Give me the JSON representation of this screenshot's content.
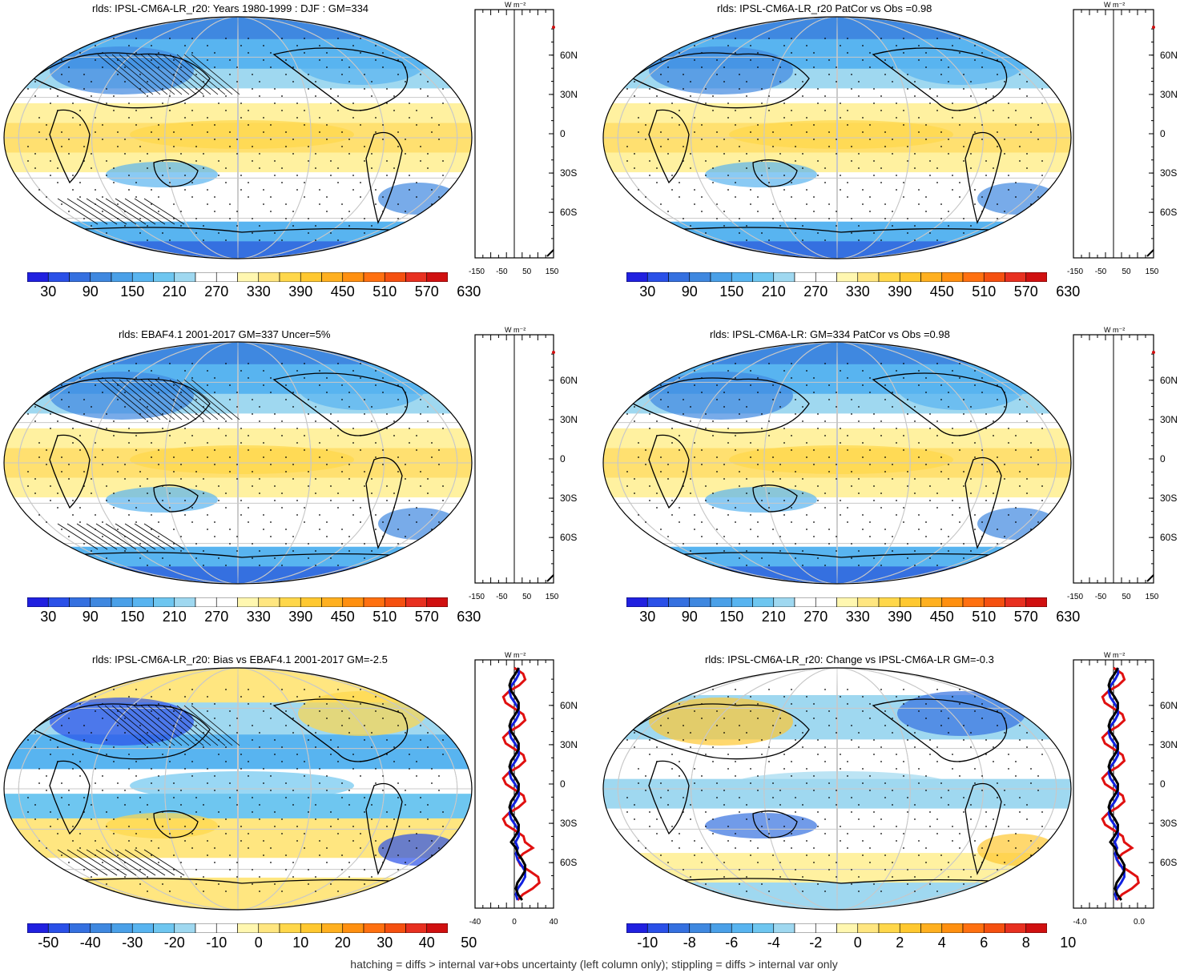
{
  "palettes": {
    "abs": [
      "#2020e0",
      "#2a50e8",
      "#3570e0",
      "#3f88e0",
      "#4aa0e8",
      "#58b4f0",
      "#6ec6f0",
      "#9fd8f0",
      "#ffffff",
      "#ffffff",
      "#fff7b0",
      "#ffe680",
      "#ffd74a",
      "#ffc830",
      "#ffb020",
      "#ff9010",
      "#ff7010",
      "#f55010",
      "#e83020",
      "#d01010"
    ],
    "diff": [
      "#2020e0",
      "#2a50e8",
      "#3570e0",
      "#3f88e0",
      "#4aa0e8",
      "#58b4f0",
      "#6ec6f0",
      "#9fd8f0",
      "#ffffff",
      "#ffffff",
      "#fff7b0",
      "#ffe680",
      "#ffd74a",
      "#ffc830",
      "#ffb020",
      "#ff9010",
      "#ff7010",
      "#f55010",
      "#e83020",
      "#d01010"
    ]
  },
  "lat_labels": [
    "60N",
    "30N",
    "0",
    "30S",
    "60S"
  ],
  "zonal_unit": "W m⁻²",
  "panels": [
    {
      "title": "rlds: IPSL-CM6A-LR_r20: Years 1980-1999 : DJF : GM=334",
      "colorbar_labels": [
        "30",
        "90",
        "150",
        "210",
        "270",
        "330",
        "390",
        "450",
        "510",
        "570",
        "630"
      ],
      "palette": "abs",
      "zonal_ticks": [
        "-150",
        "-50",
        "50",
        "150"
      ],
      "hatched": true
    },
    {
      "title": "rlds: IPSL-CM6A-LR_r20 PatCor vs Obs =0.98",
      "colorbar_labels": [
        "30",
        "90",
        "150",
        "210",
        "270",
        "330",
        "390",
        "450",
        "510",
        "570",
        "630"
      ],
      "palette": "abs",
      "zonal_ticks": [
        "-150",
        "-50",
        "50",
        "150"
      ],
      "hatched": false
    },
    {
      "title": "rlds: EBAF4.1 2001-2017 GM=337 Uncer=5%",
      "colorbar_labels": [
        "30",
        "90",
        "150",
        "210",
        "270",
        "330",
        "390",
        "450",
        "510",
        "570",
        "630"
      ],
      "palette": "abs",
      "zonal_ticks": [
        "-150",
        "-50",
        "50",
        "150"
      ],
      "hatched": true
    },
    {
      "title": "rlds: IPSL-CM6A-LR: GM=334 PatCor vs Obs =0.98",
      "colorbar_labels": [
        "30",
        "90",
        "150",
        "210",
        "270",
        "330",
        "390",
        "450",
        "510",
        "570",
        "630"
      ],
      "palette": "abs",
      "zonal_ticks": [
        "-150",
        "-50",
        "50",
        "150"
      ],
      "hatched": false
    },
    {
      "title": "rlds: IPSL-CM6A-LR_r20: Bias vs EBAF4.1 2001-2017 GM=-2.5",
      "colorbar_labels": [
        "-50",
        "-40",
        "-30",
        "-20",
        "-10",
        "0",
        "10",
        "20",
        "30",
        "40",
        "50"
      ],
      "palette": "diff",
      "zonal_ticks": [
        "-40",
        "0",
        "40"
      ],
      "hatched": true
    },
    {
      "title": "rlds: IPSL-CM6A-LR_r20: Change vs IPSL-CM6A-LR GM=-0.3",
      "colorbar_labels": [
        "-10",
        "-8",
        "-6",
        "-4",
        "-2",
        "0",
        "2",
        "4",
        "6",
        "8",
        "10"
      ],
      "palette": "diff",
      "zonal_ticks": [
        "-4.0",
        "0.0"
      ],
      "hatched": false
    }
  ],
  "footer": "hatching = diffs > internal var+obs uncertainty (left column only); stippling = diffs > internal var only"
}
